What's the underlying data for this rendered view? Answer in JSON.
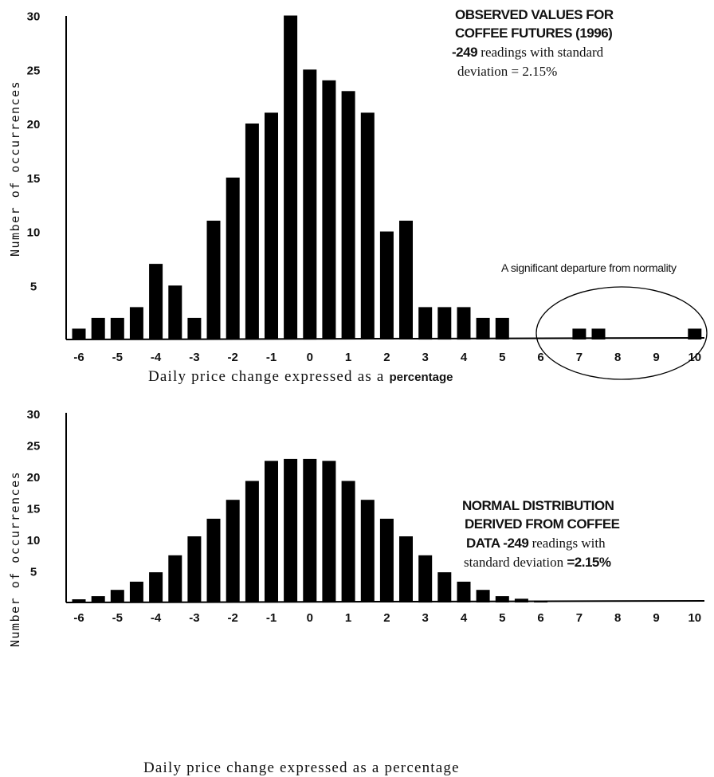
{
  "chart_data": [
    {
      "type": "bar",
      "title_line1": "OBSERVED VALUES FOR",
      "title_line2": "COFFEE FUTURES (1996)",
      "note_bold": "-249",
      "note_rest": " readings with standard",
      "note_line2": "deviation = 2.15%",
      "xlabel_main": "Daily price change expressed as a ",
      "xlabel_tail": "percentage",
      "ylabel": "Number of occurrences",
      "annotation": "A significant departure from normality",
      "ylim": [
        0,
        30
      ],
      "xlim": [
        -6,
        10
      ],
      "x_ticks": [
        "-6",
        "-5",
        "-4",
        "-3",
        "-2",
        "-1",
        "0",
        "1",
        "2",
        "3",
        "4",
        "5",
        "6",
        "7",
        "8",
        "9",
        "10"
      ],
      "y_ticks": [
        "30",
        "25",
        "20",
        "15",
        "10",
        "5"
      ],
      "x": [
        -6,
        -5.5,
        -5,
        -4.5,
        -4,
        -3.5,
        -3,
        -2.5,
        -2,
        -1.5,
        -1,
        -0.5,
        0,
        0.5,
        1,
        1.5,
        2,
        2.5,
        3,
        3.5,
        4,
        4.5,
        5,
        7,
        7.5,
        10
      ],
      "values": [
        1,
        2,
        2,
        3,
        7,
        5,
        2,
        11,
        15,
        20,
        21,
        30,
        25,
        24,
        23,
        21,
        10,
        11,
        3,
        3,
        3,
        2,
        2,
        1,
        1,
        1
      ]
    },
    {
      "type": "bar",
      "title_line1": "NORMAL DISTRIBUTION",
      "title_line2": "DERIVED FROM COFFEE",
      "note_line3_bold_a": "DATA  -249",
      "note_line3_rest": " readings with",
      "note_line4_serif": "standard deviation ",
      "note_line4_bold": "=2.15%",
      "xlabel": "Daily price change expressed as a percentage",
      "ylabel": "Number of occurrences",
      "ylim": [
        0,
        30
      ],
      "xlim": [
        -6,
        10
      ],
      "x_ticks": [
        "-6",
        "-5",
        "-4",
        "-3",
        "-2",
        "-1",
        "0",
        "1",
        "2",
        "3",
        "4",
        "5",
        "6",
        "7",
        "8",
        "9",
        "10"
      ],
      "y_ticks": [
        "30",
        "25",
        "20",
        "15",
        "10",
        "5"
      ],
      "x": [
        -6,
        -5.5,
        -5,
        -4.5,
        -4,
        -3.5,
        -3,
        -2.5,
        -2,
        -1.5,
        -1,
        -0.5,
        0,
        0.5,
        1,
        1.5,
        2,
        2.5,
        3,
        3.5,
        4,
        4.5,
        5,
        5.5,
        6
      ],
      "values": [
        0.5,
        1,
        2,
        3.3,
        4.8,
        7.5,
        10.5,
        13.3,
        16.3,
        19.3,
        22.5,
        22.8,
        22.8,
        22.5,
        19.3,
        16.3,
        13.3,
        10.5,
        7.5,
        4.8,
        3.3,
        2,
        1,
        0.6,
        0.3
      ]
    }
  ]
}
